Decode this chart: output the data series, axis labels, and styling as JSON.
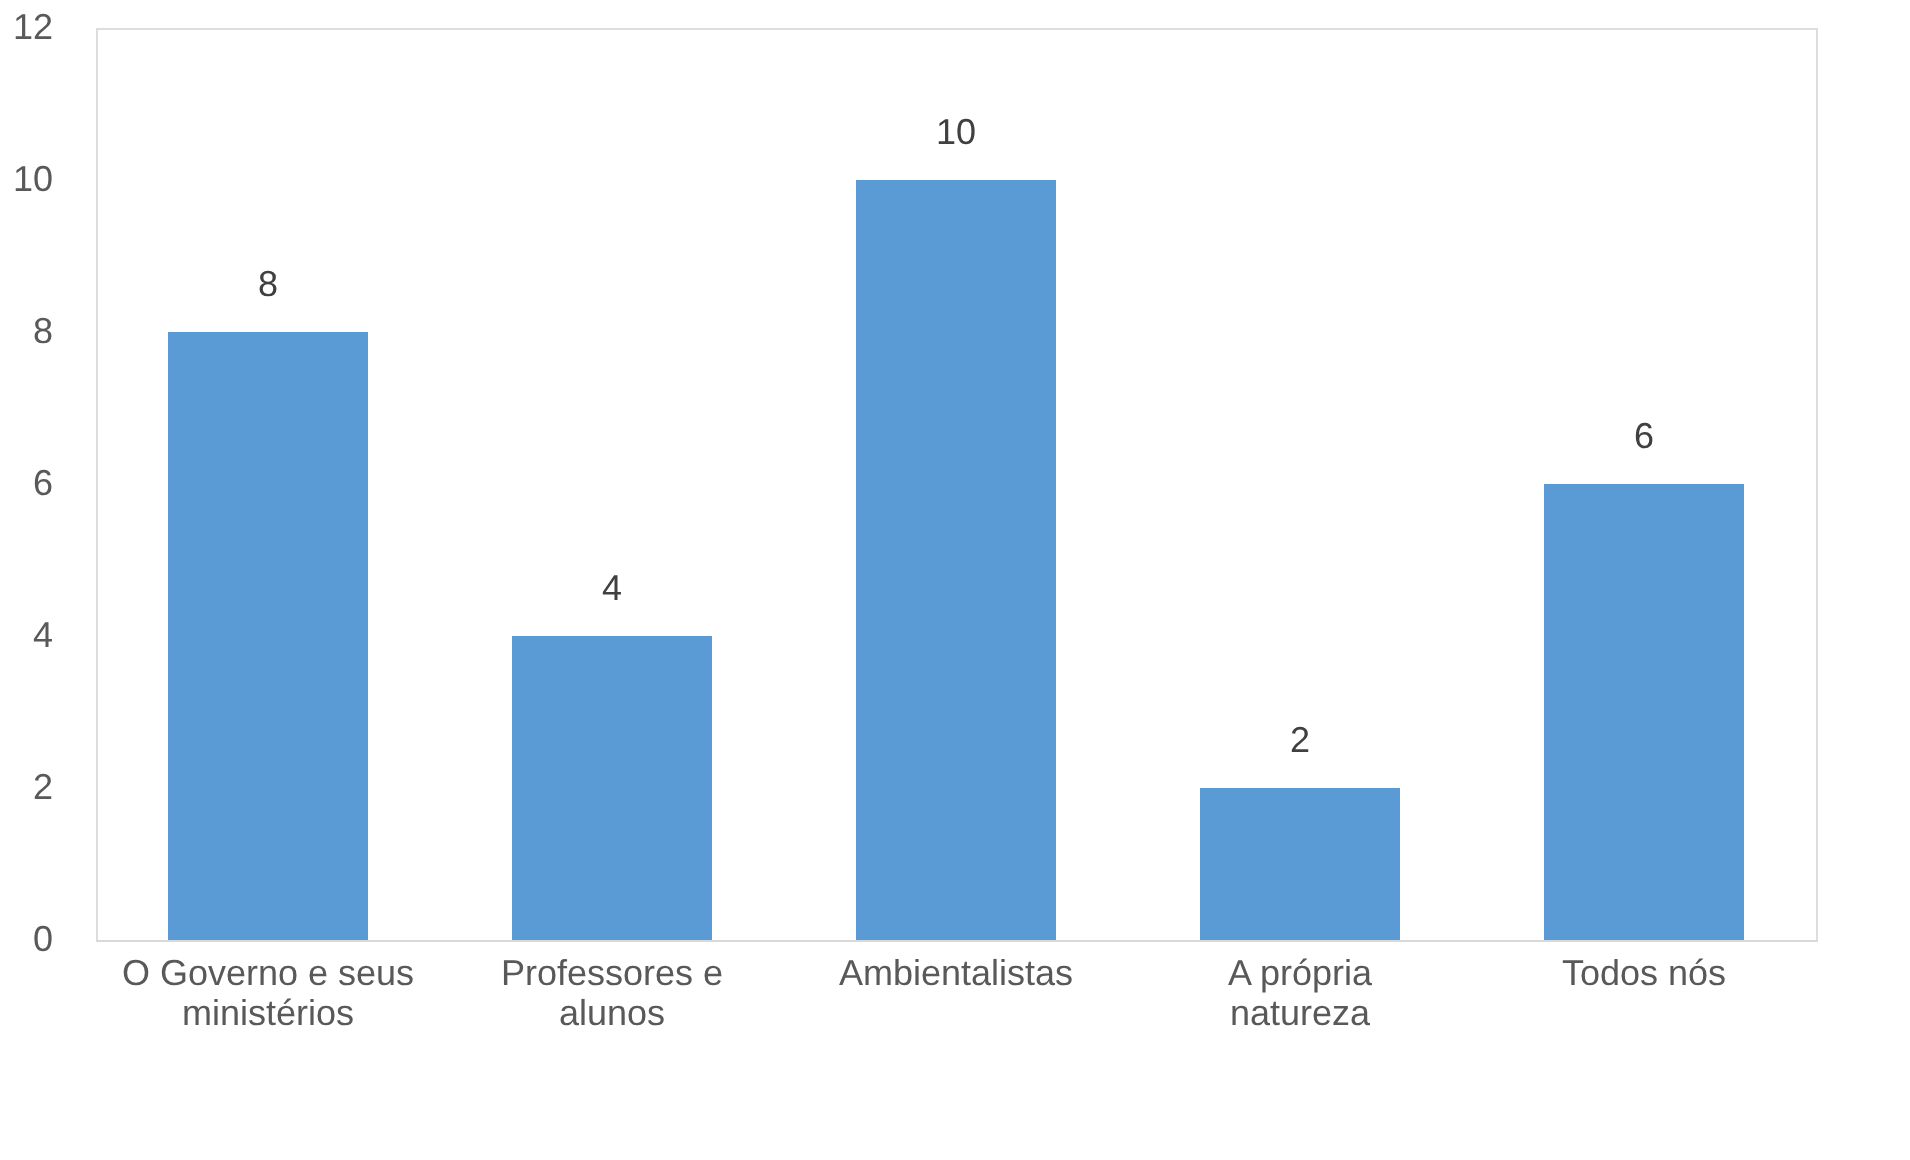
{
  "chart_data": {
    "type": "bar",
    "categories": [
      "O Governo e seus ministérios",
      "Professores e alunos",
      "Ambientalistas",
      "A própria natureza",
      "Todos nós"
    ],
    "values": [
      8,
      4,
      10,
      2,
      6
    ],
    "color": "#5b9bd5",
    "ylim": [
      0,
      12
    ],
    "yticks": [
      0,
      2,
      4,
      6,
      8,
      10,
      12
    ],
    "grid": false,
    "data_labels": true
  }
}
